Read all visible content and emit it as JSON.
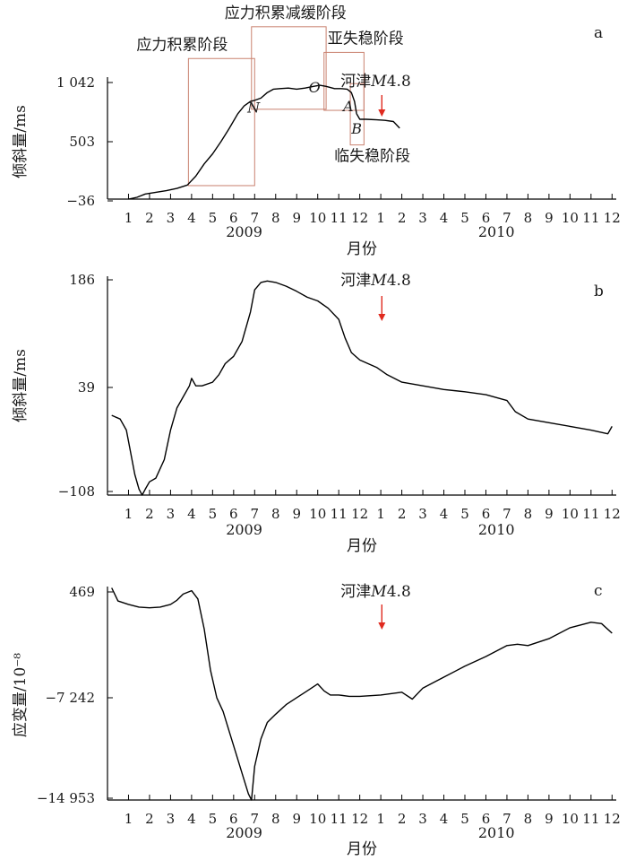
{
  "chart_data": [
    {
      "id": "a",
      "type": "line",
      "panel_label": "a",
      "ylabel": "倾斜量/ms",
      "xlabel": "月份",
      "y_ticks": [
        "1 042",
        "503",
        "−36"
      ],
      "ylim": [
        -36,
        1042
      ],
      "x_tick_labels": [
        "1",
        "2",
        "3",
        "4",
        "5",
        "6",
        "7",
        "8",
        "9",
        "10",
        "11",
        "12",
        "1",
        "2",
        "3",
        "4",
        "5",
        "6",
        "7",
        "8",
        "9",
        "10",
        "11",
        "12"
      ],
      "year_labels": [
        "2009",
        "2010"
      ],
      "event": {
        "text": "河津",
        "magnitude_prefix": "M",
        "magnitude_value": "4.8",
        "x": 13.05
      },
      "point_labels": [
        {
          "text": "N",
          "x": 6.95,
          "y": 790
        },
        {
          "text": "O",
          "x": 9.85,
          "y": 970
        },
        {
          "text": "A",
          "x": 11.45,
          "y": 800
        },
        {
          "text": "B",
          "x": 11.85,
          "y": 600
        }
      ],
      "stages": [
        {
          "label": "应力积累阶段",
          "x0": 3.85,
          "x1": 7.0,
          "y0": 85,
          "y1": 1225
        },
        {
          "label": "应力积累减缓阶段",
          "x0": 6.85,
          "x1": 10.4,
          "y0": 770,
          "y1": 1510
        },
        {
          "label": "亚失稳阶段",
          "x0": 10.3,
          "x1": 12.2,
          "y0": 760,
          "y1": 1280
        },
        {
          "label": "临失稳阶段",
          "x0": 11.55,
          "x1": 12.2,
          "y0": 450,
          "y1": 1000
        }
      ],
      "series": [
        {
          "x": [
            1.0,
            1.4,
            1.8,
            2.3,
            2.8,
            3.3,
            3.8,
            4.2,
            4.6,
            5.0,
            5.4,
            5.8,
            6.2,
            6.5,
            6.8,
            7.0,
            7.3,
            7.6,
            7.9,
            8.2,
            8.6,
            9.0,
            9.4,
            9.8,
            10.1,
            10.4,
            10.8,
            11.1,
            11.4,
            11.6,
            11.75,
            11.85,
            12.0,
            12.3,
            12.8,
            13.2,
            13.6,
            13.9
          ],
          "y": [
            -36,
            -20,
            10,
            25,
            40,
            60,
            90,
            170,
            280,
            370,
            480,
            600,
            730,
            800,
            840,
            850,
            870,
            920,
            950,
            955,
            960,
            950,
            960,
            975,
            985,
            975,
            955,
            955,
            950,
            920,
            840,
            730,
            680,
            680,
            675,
            670,
            660,
            600
          ]
        }
      ]
    },
    {
      "id": "b",
      "type": "line",
      "panel_label": "b",
      "ylabel": "倾斜量/ms",
      "xlabel": "月份",
      "y_ticks": [
        "186",
        "39",
        "−108"
      ],
      "ylim": [
        -108,
        186
      ],
      "x_tick_labels": [
        "1",
        "2",
        "3",
        "4",
        "5",
        "6",
        "7",
        "8",
        "9",
        "10",
        "11",
        "12",
        "1",
        "2",
        "3",
        "4",
        "5",
        "6",
        "7",
        "8",
        "9",
        "10",
        "11",
        "12"
      ],
      "year_labels": [
        "2009",
        "2010"
      ],
      "event": {
        "text": "河津",
        "magnitude_prefix": "M",
        "magnitude_value": "4.8",
        "x": 13.05
      },
      "series": [
        {
          "x": [
            0.2,
            0.6,
            0.9,
            1.1,
            1.3,
            1.5,
            1.65,
            1.8,
            2.0,
            2.3,
            2.7,
            3.0,
            3.3,
            3.6,
            3.9,
            4.0,
            4.2,
            4.5,
            5.0,
            5.3,
            5.6,
            6.0,
            6.4,
            6.8,
            7.0,
            7.3,
            7.6,
            8.0,
            8.5,
            9.0,
            9.5,
            10.0,
            10.5,
            11.0,
            11.3,
            11.6,
            12.0,
            12.4,
            12.8,
            13.3,
            14.0,
            15.0,
            16.0,
            17.0,
            18.0,
            19.0,
            19.4,
            20.0,
            21.0,
            22.0,
            23.0,
            23.8,
            24.0
          ],
          "y": [
            0,
            -5,
            -20,
            -50,
            -80,
            -100,
            -108,
            -100,
            -90,
            -85,
            -60,
            -20,
            10,
            25,
            40,
            50,
            40,
            40,
            45,
            55,
            70,
            80,
            100,
            140,
            170,
            180,
            182,
            180,
            175,
            168,
            160,
            155,
            145,
            130,
            105,
            85,
            75,
            70,
            65,
            55,
            45,
            40,
            35,
            32,
            28,
            20,
            5,
            -5,
            -10,
            -15,
            -20,
            -25,
            -15
          ]
        }
      ]
    },
    {
      "id": "c",
      "type": "line",
      "panel_label": "c",
      "ylabel": "应变量/10⁻⁸",
      "xlabel": "月份",
      "y_ticks": [
        "469",
        "−7 242",
        "−14 953"
      ],
      "ylim": [
        -14953,
        469
      ],
      "x_tick_labels": [
        "1",
        "2",
        "3",
        "4",
        "5",
        "6",
        "7",
        "8",
        "9",
        "10",
        "11",
        "12",
        "1",
        "2",
        "3",
        "4",
        "5",
        "6",
        "7",
        "8",
        "9",
        "10",
        "11",
        "12"
      ],
      "year_labels": [
        "2009",
        "2010"
      ],
      "event": {
        "text": "河津",
        "magnitude_prefix": "M",
        "magnitude_value": "4.8",
        "x": 13.05
      },
      "series": [
        {
          "x": [
            0.2,
            0.5,
            1.0,
            1.5,
            2.0,
            2.5,
            3.0,
            3.3,
            3.6,
            4.0,
            4.3,
            4.6,
            4.9,
            5.2,
            5.5,
            5.8,
            6.1,
            6.4,
            6.7,
            6.85,
            7.0,
            7.3,
            7.6,
            8.0,
            8.5,
            9.0,
            9.5,
            10.0,
            10.3,
            10.6,
            11.0,
            11.5,
            12.0,
            13.0,
            14.0,
            14.5,
            15.0,
            16.0,
            17.0,
            18.0,
            19.0,
            19.5,
            20.0,
            21.0,
            22.0,
            23.0,
            23.5,
            24.0
          ],
          "y": [
            500,
            -450,
            -700,
            -900,
            -950,
            -900,
            -700,
            -400,
            50,
            300,
            -300,
            -2500,
            -5500,
            -7500,
            -8500,
            -10000,
            -11500,
            -13000,
            -14500,
            -14953,
            -12500,
            -10500,
            -9300,
            -8700,
            -8000,
            -7500,
            -7000,
            -6500,
            -7000,
            -7300,
            -7300,
            -7400,
            -7400,
            -7300,
            -7100,
            -7600,
            -6800,
            -6000,
            -5200,
            -4500,
            -3700,
            -3600,
            -3700,
            -3200,
            -2400,
            -2000,
            -2100,
            -2800
          ]
        }
      ]
    }
  ]
}
